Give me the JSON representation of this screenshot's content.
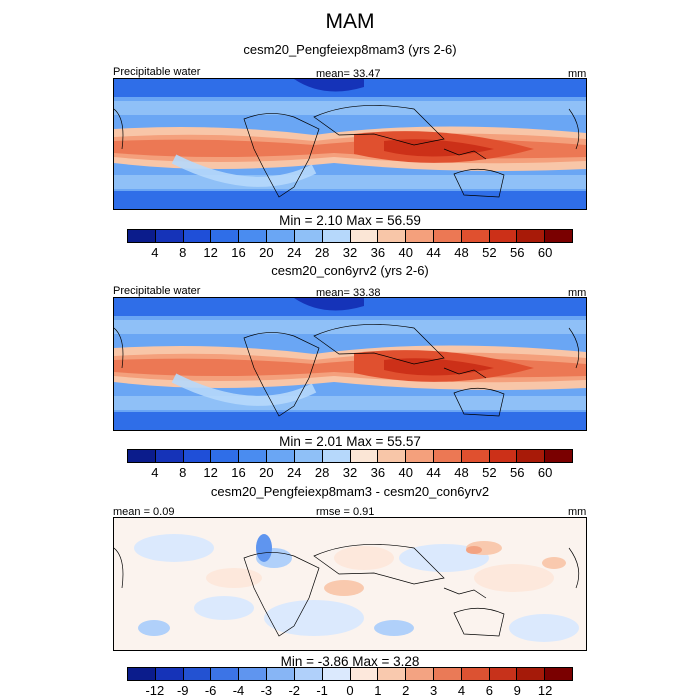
{
  "title": "MAM",
  "panels": [
    {
      "title": "cesm20_Pengfeiexp8mam3 (yrs 2-6)",
      "left_label": "Precipitable water",
      "center_label": "mean=  33.47",
      "right_label": "mm",
      "stats": "Min =   2.10 Max =  56.59",
      "type": "field"
    },
    {
      "title": "cesm20_con6yrv2 (yrs 2-6)",
      "left_label": "Precipitable water",
      "center_label": "mean=  33.38",
      "right_label": "mm",
      "stats": "Min =   2.01 Max =  55.57",
      "type": "field"
    },
    {
      "title": "cesm20_Pengfeiexp8mam3 - cesm20_con6yrv2",
      "left_label": "mean =   0.09",
      "center_label": "rmse =   0.91",
      "right_label": "mm",
      "stats": "Min =  -3.86 Max =   3.28",
      "type": "diff"
    }
  ],
  "colorbar_field": {
    "ticks": [
      "4",
      "8",
      "12",
      "16",
      "20",
      "24",
      "28",
      "32",
      "36",
      "40",
      "44",
      "48",
      "52",
      "56",
      "60"
    ],
    "colors": [
      "#0b1c8c",
      "#1533b8",
      "#1f4fd8",
      "#2f6ee8",
      "#4a8cf0",
      "#6aa6f4",
      "#8fc0f7",
      "#b6d8fb",
      "#fbe6d6",
      "#f8c6a8",
      "#f4a07c",
      "#ec7854",
      "#e0502f",
      "#cc3018",
      "#a81a08",
      "#7a0000"
    ]
  },
  "colorbar_diff": {
    "ticks": [
      "-12",
      "-9",
      "-6",
      "-4",
      "-3",
      "-2",
      "-1",
      "0",
      "1",
      "2",
      "3",
      "4",
      "6",
      "9",
      "12"
    ],
    "colors": [
      "#0b1c8c",
      "#1533b8",
      "#2352d2",
      "#3c74e6",
      "#5f95ef",
      "#87b5f5",
      "#b0d0fa",
      "#dbe9fd",
      "#fde8dc",
      "#f9c9ae",
      "#f3a382",
      "#ea7a57",
      "#dc5232",
      "#c7321b",
      "#a51a09",
      "#7a0000"
    ]
  }
}
